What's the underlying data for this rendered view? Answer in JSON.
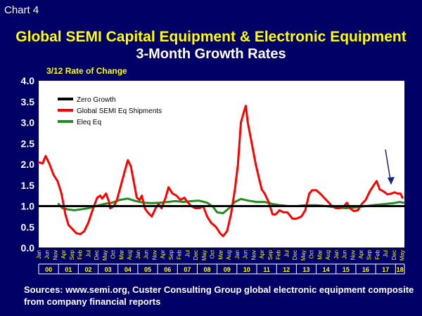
{
  "header": {
    "chart_label": "Chart 4",
    "title": "Global SEMI Capital Equipment & Electronic Equipment",
    "subtitle": "3-Month Growth Rates"
  },
  "source": "Sources: www.semi.org, Custer Consulting Group global electronic equipment composite from company financial reports",
  "colors": {
    "background": "#000066",
    "plot_bg": "#ffffff",
    "semi": "#ff0000",
    "eleq": "#228b22",
    "zero": "#000000",
    "year_label": "#ffff00",
    "arrow": "#1a237e"
  },
  "chart_data": {
    "type": "line",
    "ylabel": "3/12 Rate of Change",
    "ylim": [
      0,
      4
    ],
    "yticks": [
      "0.0",
      "0.5",
      "1.0",
      "1.5",
      "2.0",
      "2.5",
      "3.0",
      "3.5",
      "4.0"
    ],
    "x_start": "Jan 2000",
    "x_end": "Jun 2018",
    "month_ticks": [
      "Jan",
      "Jun",
      "Nov",
      "Apr",
      "Sep",
      "Feb",
      "Jul",
      "Dec",
      "May",
      "Oct",
      "Mar",
      "Aug",
      "Jan",
      "Jun",
      "Nov",
      "Apr",
      "Sep",
      "Feb",
      "Jul",
      "Dec",
      "May",
      "Oct",
      "Mar",
      "Aug",
      "Jan",
      "Jun",
      "Nov",
      "Apr",
      "Sep",
      "Feb",
      "Jul",
      "Dec",
      "May",
      "Oct",
      "Mar",
      "Aug",
      "Jan",
      "Jun",
      "Nov",
      "Apr",
      "Sep",
      "Feb",
      "Jul",
      "Dec",
      "May"
    ],
    "year_labels": [
      "00",
      "01",
      "02",
      "03",
      "04",
      "05",
      "06",
      "07",
      "08",
      "09",
      "10",
      "11",
      "12",
      "13",
      "14",
      "15",
      "16",
      "17",
      "18"
    ],
    "legend": {
      "placement": "top-left",
      "entries": [
        "Zero Growth",
        "Global SEMI Eq Shipments",
        "Eleq Eq"
      ]
    },
    "series": [
      {
        "name": "Zero Growth",
        "points": [
          [
            2000.0,
            1.0
          ],
          [
            2018.45,
            1.0
          ]
        ]
      },
      {
        "name": "Global SEMI Eq Shipments",
        "points": [
          [
            2000.0,
            2.05
          ],
          [
            2000.2,
            2.02
          ],
          [
            2000.35,
            2.2
          ],
          [
            2000.55,
            2.0
          ],
          [
            2000.75,
            1.75
          ],
          [
            2000.95,
            1.6
          ],
          [
            2001.15,
            1.3
          ],
          [
            2001.35,
            0.8
          ],
          [
            2001.5,
            0.55
          ],
          [
            2001.7,
            0.45
          ],
          [
            2001.9,
            0.35
          ],
          [
            2002.1,
            0.33
          ],
          [
            2002.3,
            0.4
          ],
          [
            2002.5,
            0.6
          ],
          [
            2002.75,
            0.95
          ],
          [
            2002.95,
            1.2
          ],
          [
            2003.1,
            1.25
          ],
          [
            2003.2,
            1.18
          ],
          [
            2003.4,
            1.3
          ],
          [
            2003.55,
            1.1
          ],
          [
            2003.6,
            0.95
          ],
          [
            2003.8,
            1.0
          ],
          [
            2003.95,
            1.15
          ],
          [
            2004.15,
            1.5
          ],
          [
            2004.35,
            1.85
          ],
          [
            2004.5,
            2.1
          ],
          [
            2004.65,
            1.95
          ],
          [
            2004.85,
            1.45
          ],
          [
            2004.95,
            1.2
          ],
          [
            2005.1,
            1.15
          ],
          [
            2005.2,
            1.25
          ],
          [
            2005.35,
            0.95
          ],
          [
            2005.5,
            0.85
          ],
          [
            2005.7,
            0.75
          ],
          [
            2005.9,
            0.95
          ],
          [
            2006.05,
            1.05
          ],
          [
            2006.2,
            0.95
          ],
          [
            2006.4,
            1.2
          ],
          [
            2006.55,
            1.45
          ],
          [
            2006.75,
            1.3
          ],
          [
            2006.95,
            1.25
          ],
          [
            2007.15,
            1.15
          ],
          [
            2007.35,
            1.2
          ],
          [
            2007.5,
            1.1
          ],
          [
            2007.7,
            1.0
          ],
          [
            2007.9,
            0.95
          ],
          [
            2008.1,
            0.95
          ],
          [
            2008.3,
            1.0
          ],
          [
            2008.5,
            0.75
          ],
          [
            2008.7,
            0.6
          ],
          [
            2008.95,
            0.5
          ],
          [
            2009.15,
            0.35
          ],
          [
            2009.3,
            0.28
          ],
          [
            2009.5,
            0.4
          ],
          [
            2009.7,
            0.8
          ],
          [
            2009.9,
            1.4
          ],
          [
            2010.05,
            2.0
          ],
          [
            2010.2,
            3.0
          ],
          [
            2010.35,
            3.25
          ],
          [
            2010.45,
            3.4
          ],
          [
            2010.55,
            3.0
          ],
          [
            2010.75,
            2.5
          ],
          [
            2010.95,
            2.0
          ],
          [
            2011.1,
            1.7
          ],
          [
            2011.25,
            1.4
          ],
          [
            2011.4,
            1.3
          ],
          [
            2011.6,
            1.1
          ],
          [
            2011.8,
            0.8
          ],
          [
            2011.95,
            0.8
          ],
          [
            2012.15,
            0.9
          ],
          [
            2012.35,
            0.85
          ],
          [
            2012.55,
            0.85
          ],
          [
            2012.8,
            0.7
          ],
          [
            2013.0,
            0.7
          ],
          [
            2013.25,
            0.75
          ],
          [
            2013.45,
            0.9
          ],
          [
            2013.65,
            1.3
          ],
          [
            2013.8,
            1.38
          ],
          [
            2014.0,
            1.38
          ],
          [
            2014.2,
            1.3
          ],
          [
            2014.4,
            1.2
          ],
          [
            2014.6,
            1.1
          ],
          [
            2014.8,
            1.0
          ],
          [
            2015.0,
            0.95
          ],
          [
            2015.2,
            0.95
          ],
          [
            2015.4,
            1.0
          ],
          [
            2015.55,
            1.08
          ],
          [
            2015.7,
            0.95
          ],
          [
            2015.9,
            0.88
          ],
          [
            2016.1,
            0.9
          ],
          [
            2016.3,
            1.05
          ],
          [
            2016.5,
            1.15
          ],
          [
            2016.7,
            1.35
          ],
          [
            2016.9,
            1.5
          ],
          [
            2017.05,
            1.6
          ],
          [
            2017.2,
            1.4
          ],
          [
            2017.4,
            1.35
          ],
          [
            2017.6,
            1.28
          ],
          [
            2017.8,
            1.3
          ],
          [
            2017.95,
            1.33
          ],
          [
            2018.1,
            1.3
          ],
          [
            2018.25,
            1.3
          ],
          [
            2018.35,
            1.2
          ]
        ]
      },
      {
        "name": "Eleq Eq",
        "points": [
          [
            2001.0,
            1.05
          ],
          [
            2001.2,
            0.95
          ],
          [
            2001.5,
            0.92
          ],
          [
            2001.8,
            0.9
          ],
          [
            2002.1,
            0.92
          ],
          [
            2002.5,
            0.95
          ],
          [
            2002.9,
            1.0
          ],
          [
            2003.3,
            1.05
          ],
          [
            2003.7,
            1.08
          ],
          [
            2004.1,
            1.15
          ],
          [
            2004.5,
            1.18
          ],
          [
            2004.9,
            1.12
          ],
          [
            2005.3,
            1.08
          ],
          [
            2005.7,
            1.07
          ],
          [
            2006.1,
            1.08
          ],
          [
            2006.5,
            1.1
          ],
          [
            2006.9,
            1.12
          ],
          [
            2007.3,
            1.1
          ],
          [
            2007.7,
            1.12
          ],
          [
            2008.1,
            1.13
          ],
          [
            2008.5,
            1.08
          ],
          [
            2008.8,
            0.98
          ],
          [
            2009.0,
            0.85
          ],
          [
            2009.3,
            0.83
          ],
          [
            2009.6,
            0.95
          ],
          [
            2009.9,
            1.1
          ],
          [
            2010.2,
            1.17
          ],
          [
            2010.6,
            1.13
          ],
          [
            2011.0,
            1.1
          ],
          [
            2011.4,
            1.1
          ],
          [
            2011.8,
            1.05
          ],
          [
            2012.2,
            1.02
          ],
          [
            2012.6,
            1.0
          ],
          [
            2013.0,
            1.0
          ],
          [
            2013.5,
            1.02
          ],
          [
            2014.0,
            1.02
          ],
          [
            2014.5,
            1.0
          ],
          [
            2015.0,
            0.97
          ],
          [
            2015.5,
            0.95
          ],
          [
            2016.0,
            0.97
          ],
          [
            2016.5,
            1.0
          ],
          [
            2017.0,
            1.03
          ],
          [
            2017.5,
            1.05
          ],
          [
            2017.9,
            1.07
          ],
          [
            2018.2,
            1.1
          ],
          [
            2018.4,
            1.08
          ]
        ]
      }
    ]
  }
}
